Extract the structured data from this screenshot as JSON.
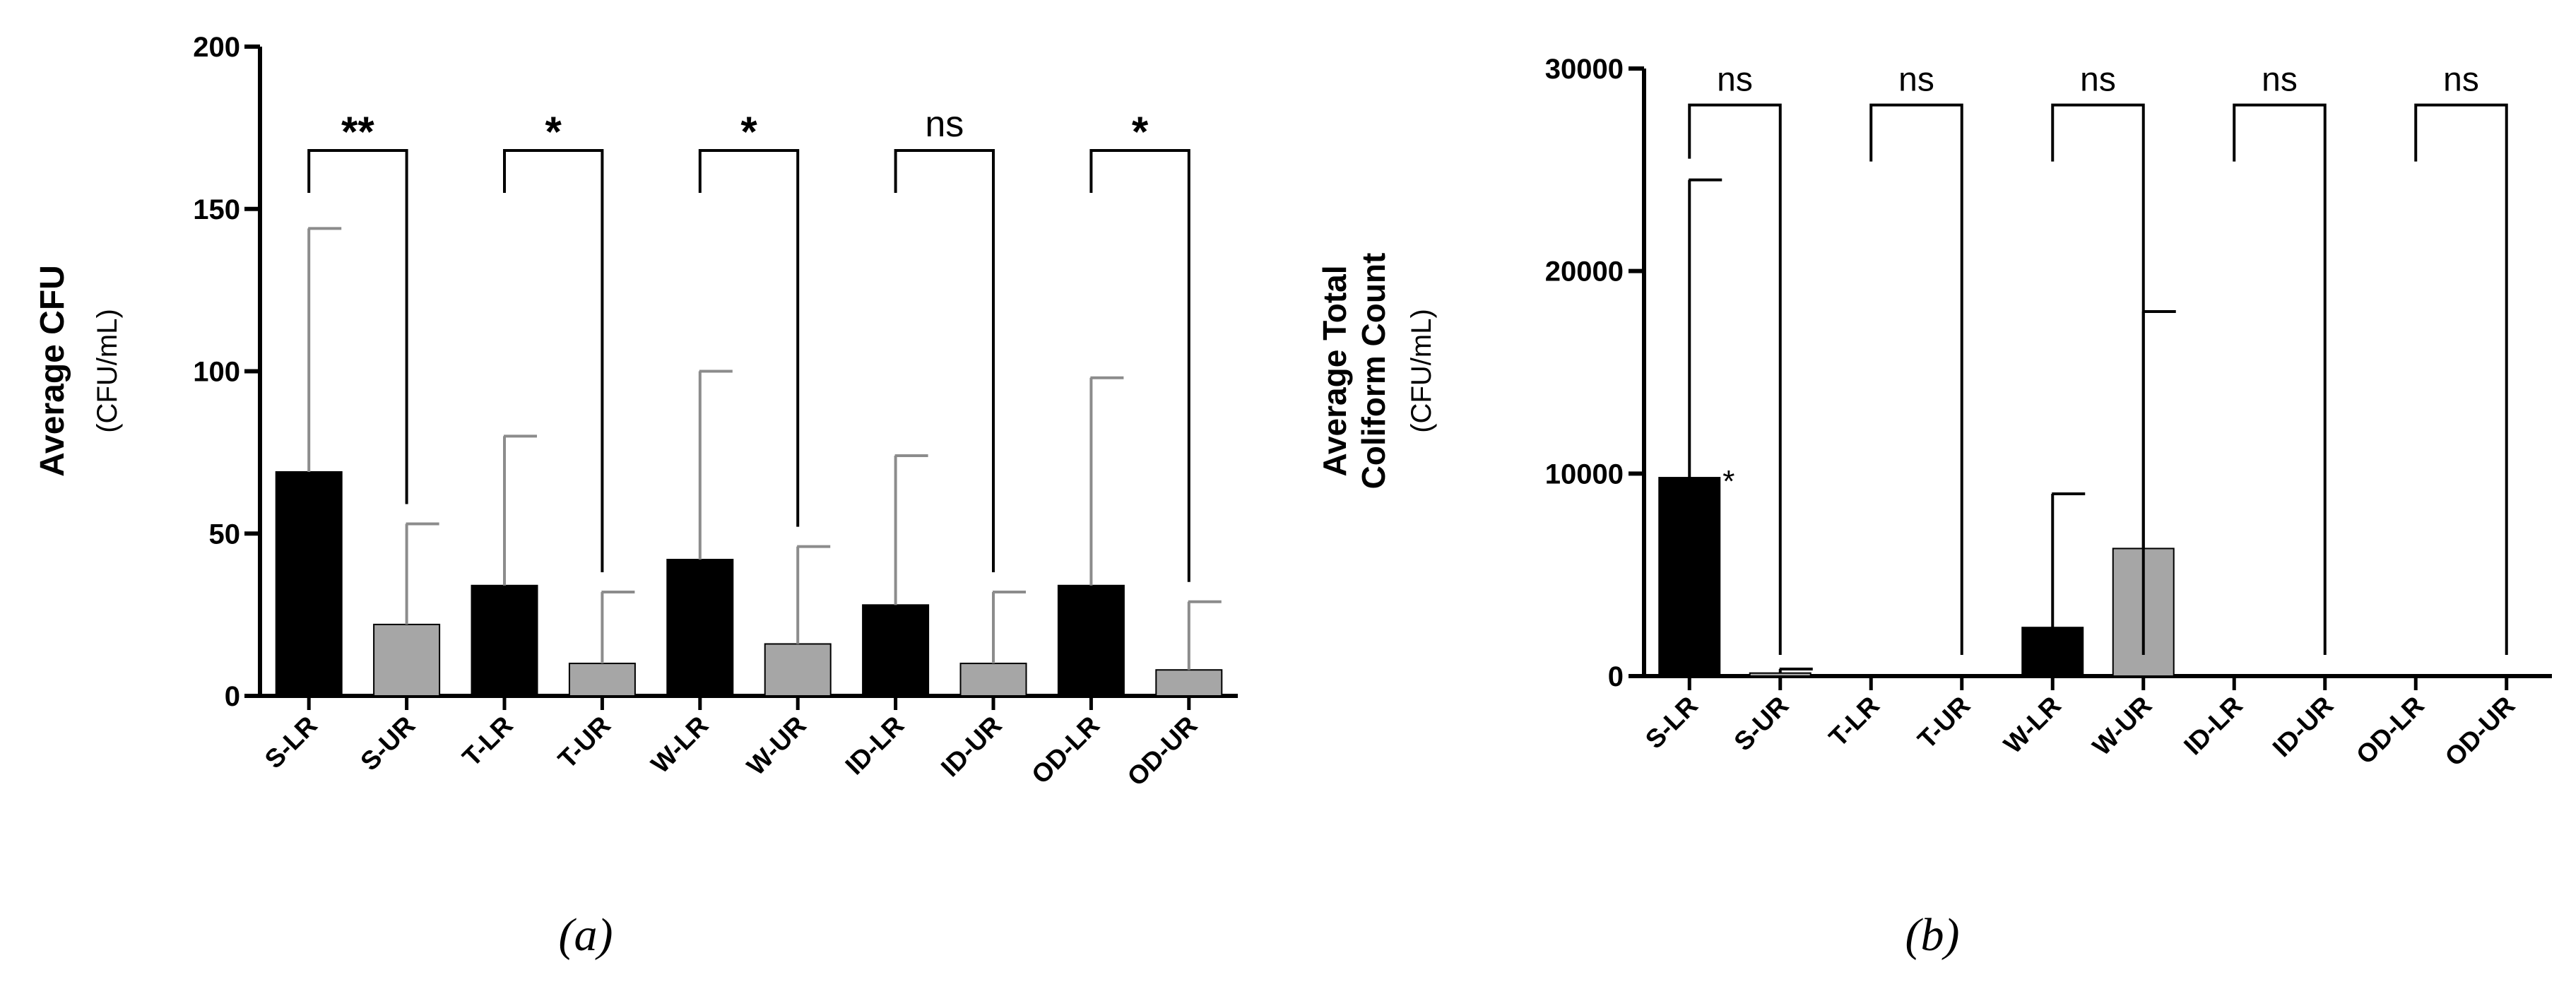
{
  "chart_data": [
    {
      "type": "bar",
      "panel_caption": "(a)",
      "ylabel": "Average CFU",
      "ylabel_unit": "(CFU/mL)",
      "ylim": [
        0,
        200
      ],
      "yticks": [
        0,
        50,
        100,
        150,
        200
      ],
      "categories": [
        "S-LR",
        "S-UR",
        "T-LR",
        "T-UR",
        "W-LR",
        "W-UR",
        "ID-LR",
        "ID-UR",
        "OD-LR",
        "OD-UR"
      ],
      "values": [
        69,
        22,
        34,
        10,
        42,
        16,
        28,
        10,
        34,
        8
      ],
      "error_upper": [
        144,
        53,
        80,
        32,
        100,
        46,
        74,
        32,
        98,
        29
      ],
      "bar_colors": [
        "#000000",
        "#a6a6a6",
        "#000000",
        "#a6a6a6",
        "#000000",
        "#a6a6a6",
        "#000000",
        "#a6a6a6",
        "#000000",
        "#a6a6a6"
      ],
      "significance": [
        {
          "pair": [
            0,
            1
          ],
          "label": "**",
          "level": 168
        },
        {
          "pair": [
            2,
            3
          ],
          "label": "*",
          "level": 168
        },
        {
          "pair": [
            4,
            5
          ],
          "label": "*",
          "level": 168
        },
        {
          "pair": [
            6,
            7
          ],
          "label": "ns",
          "level": 168
        },
        {
          "pair": [
            8,
            9
          ],
          "label": "*",
          "level": 168
        }
      ],
      "grid": false
    },
    {
      "type": "bar",
      "panel_caption": "(b)",
      "ylabel": "Average Total",
      "ylabel_line2": "Coliform Count",
      "ylabel_unit": "(CFU/mL)",
      "ylim": [
        0,
        30000
      ],
      "yticks": [
        0,
        10000,
        20000,
        30000
      ],
      "categories": [
        "S-LR",
        "S-UR",
        "T-LR",
        "T-UR",
        "W-LR",
        "W-UR",
        "ID-LR",
        "ID-UR",
        "OD-LR",
        "OD-UR"
      ],
      "values": [
        9800,
        150,
        0,
        0,
        2400,
        6300,
        0,
        0,
        0,
        0
      ],
      "error_upper": [
        24500,
        350,
        null,
        null,
        9000,
        18000,
        null,
        null,
        null,
        null
      ],
      "bar_colors": [
        "#000000",
        "#a6a6a6",
        "#000000",
        "#a6a6a6",
        "#000000",
        "#a6a6a6",
        "#000000",
        "#a6a6a6",
        "#000000",
        "#a6a6a6"
      ],
      "bar_annotations": [
        {
          "index": 0,
          "label": "*"
        }
      ],
      "significance": [
        {
          "pair": [
            0,
            1
          ],
          "label": "ns",
          "level": 28200
        },
        {
          "pair": [
            2,
            3
          ],
          "label": "ns",
          "level": 28200
        },
        {
          "pair": [
            4,
            5
          ],
          "label": "ns",
          "level": 28200
        },
        {
          "pair": [
            6,
            7
          ],
          "label": "ns",
          "level": 28200
        },
        {
          "pair": [
            8,
            9
          ],
          "label": "ns",
          "level": 28200
        }
      ],
      "grid": false
    }
  ],
  "colors": {
    "dark_bar": "#000000",
    "light_bar": "#a6a6a6",
    "axis": "#000000"
  }
}
